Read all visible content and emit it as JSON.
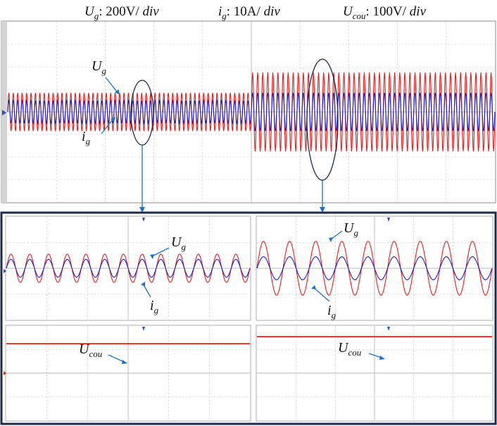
{
  "header": {
    "ug_scale": {
      "sym": "U",
      "sub": "g",
      "text": ": 200V/ ",
      "unit": "div"
    },
    "ig_scale": {
      "sym": "i",
      "sub": "g",
      "text": ": 10A/ ",
      "unit": "div"
    },
    "ucou_scale": {
      "sym": "U",
      "sub": "cou",
      "text": ": 100V/ ",
      "unit": "div"
    }
  },
  "labels": {
    "ug": {
      "sym": "U",
      "sub": "g"
    },
    "ig": {
      "sym": "i",
      "sub": "g"
    },
    "ucou": {
      "sym": "U",
      "sub": "cou"
    }
  },
  "colors": {
    "ug_trace": "#e02020",
    "ig_trace": "#2020c0",
    "ucou_trace": "#e02020",
    "annotation": "#1a73c8",
    "frame": "#1f2a4a",
    "grid": "#b9b9b9"
  },
  "chart_data": [
    {
      "id": "overview",
      "type": "line",
      "grid": true,
      "divisions": {
        "x": 10,
        "y": 8
      },
      "series": [
        {
          "name": "Ug",
          "key": "ug",
          "segments": [
            {
              "from_div": 0,
              "to_div": 5,
              "amplitude_div": 0.85,
              "cycles": 55
            },
            {
              "from_div": 5,
              "to_div": 10,
              "amplitude_div": 1.75,
              "cycles": 48
            }
          ]
        },
        {
          "name": "ig",
          "key": "ig",
          "segments": [
            {
              "from_div": 0,
              "to_div": 5,
              "amplitude_div": 0.5,
              "cycles": 55
            },
            {
              "from_div": 5,
              "to_div": 10,
              "amplitude_div": 0.85,
              "cycles": 48
            }
          ]
        }
      ]
    },
    {
      "id": "zoom-before-ac",
      "type": "line",
      "grid": true,
      "divisions": {
        "x": 6,
        "y": 4
      },
      "series": [
        {
          "name": "Ug",
          "key": "ug",
          "amplitude_div": 0.55,
          "cycles": 13
        },
        {
          "name": "ig",
          "key": "ig",
          "amplitude_div": 0.35,
          "cycles": 13
        }
      ]
    },
    {
      "id": "zoom-after-ac",
      "type": "line",
      "grid": true,
      "divisions": {
        "x": 6,
        "y": 4
      },
      "series": [
        {
          "name": "Ug",
          "key": "ug",
          "amplitude_div": 1.05,
          "cycles": 9
        },
        {
          "name": "ig",
          "key": "ig",
          "amplitude_div": 0.45,
          "cycles": 9
        }
      ]
    },
    {
      "id": "zoom-before-dc",
      "type": "line",
      "grid": true,
      "divisions": {
        "x": 6,
        "y": 4
      },
      "series": [
        {
          "name": "Ucou",
          "key": "ucou",
          "level_div": 1.25
        }
      ]
    },
    {
      "id": "zoom-after-dc",
      "type": "line",
      "grid": true,
      "divisions": {
        "x": 6,
        "y": 4
      },
      "series": [
        {
          "name": "Ucou",
          "key": "ucou",
          "level_div": 1.55
        }
      ]
    }
  ]
}
